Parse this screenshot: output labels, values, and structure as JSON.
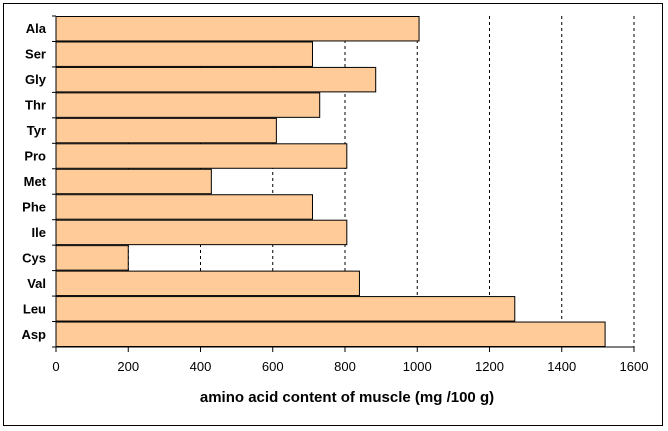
{
  "chart_data": {
    "type": "bar",
    "orientation": "horizontal",
    "categories": [
      "Ala",
      "Ser",
      "Gly",
      "Thr",
      "Tyr",
      "Pro",
      "Met",
      "Phe",
      "Ile",
      "Cys",
      "Val",
      "Leu",
      "Asp"
    ],
    "values": [
      1005,
      710,
      885,
      730,
      610,
      805,
      430,
      710,
      805,
      200,
      840,
      1270,
      1520
    ],
    "xlabel": "amino acid content of muscle (mg /100 g)",
    "ylabel": "",
    "xlim": [
      0,
      1600
    ],
    "xticks": [
      0,
      200,
      400,
      600,
      800,
      1000,
      1200,
      1400,
      1600
    ],
    "tick_labels": [
      "0",
      "200",
      "400",
      "600",
      "800",
      "1000",
      "1200",
      "1400",
      "1600"
    ],
    "grid": "vertical dashed",
    "bar_color": "#ffcc99",
    "bar_edge_color": "#000000"
  }
}
